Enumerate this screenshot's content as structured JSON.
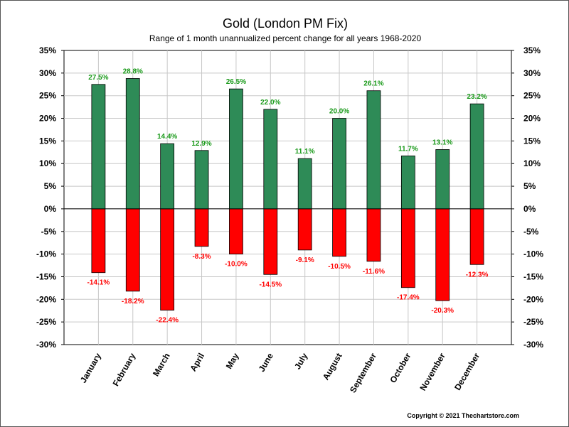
{
  "chart_data": {
    "type": "bar",
    "title": "Gold (London PM Fix)",
    "subtitle": "Range of 1 month unannualized percent change for all years 1968-2020",
    "categories": [
      "January",
      "February",
      "March",
      "April",
      "May",
      "June",
      "July",
      "August",
      "September",
      "October",
      "November",
      "December"
    ],
    "series": [
      {
        "values": [
          27.5,
          28.8,
          14.4,
          12.9,
          26.5,
          22.0,
          11.1,
          20.0,
          26.1,
          11.7,
          13.1,
          23.2
        ],
        "labels": [
          "27.5%",
          "28.8%",
          "14.4%",
          "12.9%",
          "26.5%",
          "22.0%",
          "11.1%",
          "20.0%",
          "26.1%",
          "11.7%",
          "13.1%",
          "23.2%"
        ],
        "color": "#2e8b57",
        "label_color": "#1a9a1a"
      },
      {
        "values": [
          -14.1,
          -18.2,
          -22.4,
          -8.3,
          -10.0,
          -14.5,
          -9.1,
          -10.5,
          -11.6,
          -17.4,
          -20.3,
          -12.3
        ],
        "labels": [
          "-14.1%",
          "-18.2%",
          "-22.4%",
          "-8.3%",
          "-10.0%",
          "-14.5%",
          "-9.1%",
          "-10.5%",
          "-11.6%",
          "-17.4%",
          "-20.3%",
          "-12.3%"
        ],
        "color": "#ff0000",
        "label_color": "#ff0000"
      }
    ],
    "ylim": [
      -30,
      35
    ],
    "yticks": [
      35,
      30,
      25,
      20,
      15,
      10,
      5,
      0,
      -5,
      -10,
      -15,
      -20,
      -25,
      -30
    ],
    "ytick_labels": [
      "35%",
      "30%",
      "25%",
      "20%",
      "15%",
      "10%",
      "5%",
      "0%",
      "-5%",
      "-10%",
      "-15%",
      "-20%",
      "-25%",
      "-30%"
    ],
    "grid": true,
    "legend": "none",
    "y_axis_both_sides": true
  },
  "copyright": "Copyright © 2021 Thechartstore.com"
}
